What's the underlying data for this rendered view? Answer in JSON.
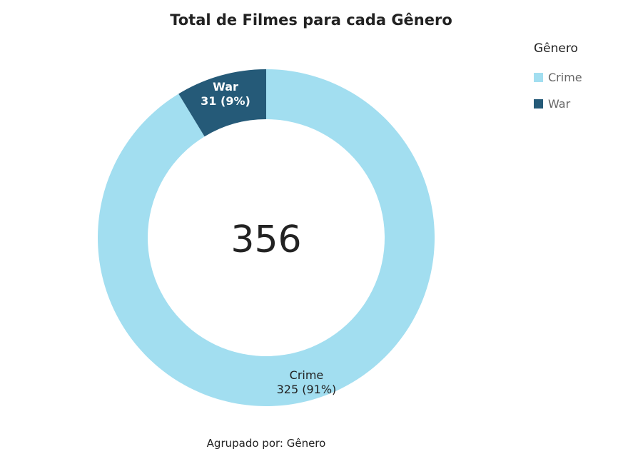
{
  "chart_data": {
    "type": "pie",
    "variant": "donut",
    "title": "Total de Filmes para cada Gênero",
    "center_total": "356",
    "legend_title": "Gênero",
    "legend_position": "top-right",
    "slices": [
      {
        "name": "Crime",
        "value": 325,
        "label_value": "325 (91%)",
        "color": "#a2def0",
        "label_color": "#222222"
      },
      {
        "name": "War",
        "value": 31,
        "label_value": "31 (9%)",
        "color": "#255a78",
        "label_color": "#ffffff"
      }
    ],
    "footer": "Agrupado por: Gênero"
  }
}
